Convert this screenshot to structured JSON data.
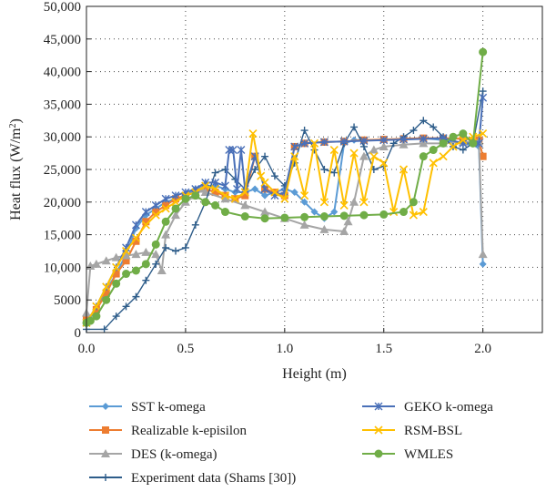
{
  "chart_data": {
    "type": "line",
    "xlabel": "Height (m)",
    "ylabel_main": "Heat flux (W/m",
    "ylabel_sup": "2",
    "ylabel_end": ")",
    "xlim": [
      0,
      2.3
    ],
    "ylim": [
      0,
      50000
    ],
    "x_ticks": [
      0.0,
      0.5,
      1.0,
      1.5,
      2.0
    ],
    "x_tick_labels": [
      "0.0",
      "0.5",
      "1.0",
      "1.5",
      "2.0"
    ],
    "y_ticks": [
      0,
      5000,
      10000,
      15000,
      20000,
      25000,
      30000,
      35000,
      40000,
      45000,
      50000
    ],
    "y_tick_labels": [
      "0",
      "5000",
      "10,000",
      "15,000",
      "20,000",
      "25,000",
      "30,000",
      "35,000",
      "40,000",
      "45,000",
      "50,000"
    ],
    "grid": true,
    "legend_position": "bottom",
    "series": [
      {
        "name": "SST k-omega",
        "color": "#5b9bd5",
        "marker": "diamond",
        "x": [
          0.0,
          0.05,
          0.1,
          0.15,
          0.2,
          0.25,
          0.3,
          0.35,
          0.4,
          0.45,
          0.5,
          0.55,
          0.6,
          0.65,
          0.7,
          0.75,
          0.8,
          0.85,
          0.9,
          0.95,
          1.0,
          1.05,
          1.1,
          1.15,
          1.2,
          1.25,
          1.3,
          1.35,
          1.4,
          1.5,
          1.6,
          1.7,
          1.8,
          1.9,
          1.98,
          2.0
        ],
        "y": [
          1500,
          3500,
          6500,
          9000,
          12000,
          16000,
          18000,
          19000,
          20000,
          20500,
          21000,
          22000,
          22500,
          22500,
          22000,
          21500,
          21500,
          22000,
          21000,
          21500,
          22000,
          21500,
          20000,
          18500,
          17500,
          18500,
          29000,
          29500,
          29500,
          29500,
          29700,
          29800,
          29500,
          29000,
          28500,
          10500
        ]
      },
      {
        "name": "Realizable k-episilon",
        "color": "#ed7d31",
        "marker": "square",
        "x": [
          0.0,
          0.05,
          0.1,
          0.15,
          0.2,
          0.25,
          0.3,
          0.35,
          0.4,
          0.45,
          0.5,
          0.55,
          0.6,
          0.65,
          0.7,
          0.75,
          0.8,
          0.85,
          0.9,
          0.95,
          1.0,
          1.05,
          1.1,
          1.2,
          1.3,
          1.4,
          1.5,
          1.6,
          1.7,
          1.8,
          1.9,
          1.98,
          2.0
        ],
        "y": [
          2000,
          3500,
          6000,
          9000,
          11000,
          14000,
          17000,
          18500,
          19500,
          20500,
          21000,
          21500,
          22000,
          21500,
          21000,
          20500,
          21000,
          27000,
          22000,
          21500,
          21000,
          28500,
          29000,
          29200,
          29300,
          29500,
          29600,
          29700,
          29800,
          29800,
          29700,
          29500,
          27000
        ]
      },
      {
        "name": "DES (k-omega)",
        "color": "#a5a5a5",
        "marker": "triangle",
        "x": [
          0.0,
          0.02,
          0.05,
          0.1,
          0.15,
          0.2,
          0.25,
          0.3,
          0.35,
          0.38,
          0.4,
          0.45,
          0.5,
          0.55,
          0.58,
          0.6,
          0.7,
          0.8,
          0.9,
          1.0,
          1.1,
          1.2,
          1.3,
          1.32,
          1.35,
          1.4,
          1.45,
          1.5,
          1.6,
          1.7,
          1.8,
          1.9,
          1.98,
          2.0
        ],
        "y": [
          3000,
          10200,
          10500,
          11000,
          11500,
          11800,
          12000,
          12300,
          12000,
          9500,
          15000,
          18000,
          20000,
          21000,
          22000,
          21500,
          20500,
          19500,
          18500,
          17500,
          16500,
          15800,
          15500,
          17000,
          20000,
          27000,
          28000,
          28500,
          28800,
          29000,
          29000,
          29200,
          29300,
          12000
        ]
      },
      {
        "name": "Experiment data (Shams [30])",
        "color": "#2e5d8a",
        "marker": "plus",
        "x": [
          0.0,
          0.09,
          0.15,
          0.2,
          0.25,
          0.3,
          0.35,
          0.4,
          0.45,
          0.5,
          0.55,
          0.6,
          0.65,
          0.7,
          0.75,
          0.8,
          0.85,
          0.9,
          0.95,
          1.0,
          1.05,
          1.1,
          1.15,
          1.2,
          1.25,
          1.3,
          1.35,
          1.4,
          1.45,
          1.5,
          1.55,
          1.6,
          1.65,
          1.7,
          1.75,
          1.8,
          1.85,
          1.9,
          1.95,
          2.0
        ],
        "y": [
          500,
          500,
          2500,
          4000,
          5500,
          8000,
          10500,
          13000,
          12500,
          13000,
          16500,
          20000,
          24500,
          25000,
          23500,
          22000,
          25000,
          27000,
          24000,
          22500,
          26000,
          31000,
          28000,
          25000,
          24500,
          29000,
          31500,
          28500,
          25000,
          25500,
          29000,
          30000,
          31000,
          32500,
          31500,
          30000,
          28500,
          28000,
          29000,
          37000
        ]
      },
      {
        "name": "GEKO k-omega",
        "color": "#4a70b8",
        "marker": "asterisk",
        "x": [
          0.0,
          0.05,
          0.1,
          0.15,
          0.2,
          0.25,
          0.3,
          0.35,
          0.4,
          0.45,
          0.5,
          0.55,
          0.6,
          0.65,
          0.7,
          0.72,
          0.74,
          0.76,
          0.78,
          0.8,
          0.85,
          0.9,
          0.95,
          1.0,
          1.05,
          1.1,
          1.2,
          1.3,
          1.4,
          1.5,
          1.6,
          1.7,
          1.8,
          1.9,
          1.98,
          2.0
        ],
        "y": [
          1500,
          4000,
          7000,
          10000,
          13000,
          16500,
          18500,
          19500,
          20500,
          21000,
          21500,
          22000,
          23000,
          23000,
          22500,
          28000,
          28000,
          22000,
          28000,
          22000,
          27000,
          22000,
          21000,
          21500,
          28500,
          29000,
          29200,
          29300,
          29400,
          29500,
          29600,
          29700,
          29800,
          29000,
          29000,
          36000
        ]
      },
      {
        "name": "RSM-BSL",
        "color": "#ffc000",
        "marker": "x",
        "x": [
          0.0,
          0.05,
          0.1,
          0.15,
          0.2,
          0.25,
          0.3,
          0.35,
          0.4,
          0.45,
          0.5,
          0.55,
          0.6,
          0.65,
          0.7,
          0.75,
          0.8,
          0.84,
          0.88,
          0.9,
          0.95,
          1.0,
          1.05,
          1.1,
          1.15,
          1.2,
          1.25,
          1.3,
          1.35,
          1.4,
          1.45,
          1.5,
          1.55,
          1.6,
          1.65,
          1.7,
          1.75,
          1.8,
          1.85,
          1.9,
          1.95,
          2.0
        ],
        "y": [
          1500,
          4000,
          7000,
          10000,
          12500,
          14500,
          16500,
          18000,
          19000,
          20000,
          21000,
          21500,
          22500,
          22000,
          21000,
          20500,
          21500,
          30500,
          24000,
          23000,
          21500,
          20500,
          27000,
          21000,
          29000,
          20000,
          28000,
          19500,
          27500,
          20000,
          27000,
          26000,
          18500,
          25000,
          18000,
          18500,
          26000,
          27000,
          28500,
          29500,
          30000,
          30500
        ]
      },
      {
        "name": "WMLES",
        "color": "#70ad47",
        "marker": "circle",
        "x": [
          0.0,
          0.02,
          0.05,
          0.1,
          0.15,
          0.2,
          0.25,
          0.3,
          0.35,
          0.4,
          0.45,
          0.5,
          0.55,
          0.6,
          0.65,
          0.7,
          0.8,
          0.9,
          1.0,
          1.1,
          1.2,
          1.3,
          1.4,
          1.5,
          1.6,
          1.65,
          1.7,
          1.75,
          1.8,
          1.85,
          1.9,
          1.95,
          2.0
        ],
        "y": [
          1500,
          1800,
          2500,
          5000,
          7500,
          9000,
          9500,
          10500,
          13500,
          17000,
          19000,
          20500,
          21000,
          20000,
          19500,
          18500,
          17800,
          17500,
          17600,
          17700,
          17800,
          17900,
          18000,
          18100,
          18500,
          20000,
          27000,
          28000,
          29000,
          30000,
          30500,
          29000,
          43000
        ]
      }
    ]
  }
}
